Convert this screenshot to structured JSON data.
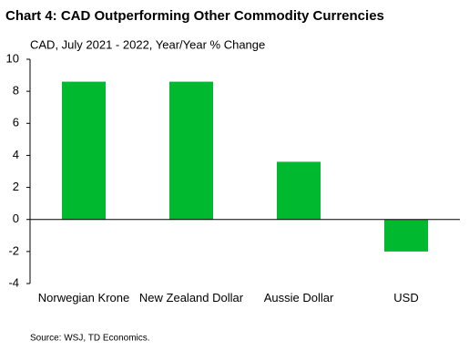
{
  "chart_data": {
    "type": "bar",
    "title": "Chart 4: CAD Outperforming Other Commodity Currencies",
    "subtitle": "CAD, July 2021 - 2022, Year/Year % Change",
    "source": "Source: WSJ, TD Economics.",
    "categories": [
      "Norwegian Krone",
      "New Zealand Dollar",
      "Aussie Dollar",
      "USD"
    ],
    "values": [
      8.6,
      8.6,
      3.6,
      -2.0
    ],
    "color": "#00b92e",
    "ylim": [
      -4,
      10
    ],
    "yticks": [
      -4,
      -2,
      0,
      2,
      4,
      6,
      8,
      10
    ],
    "grid": false
  }
}
